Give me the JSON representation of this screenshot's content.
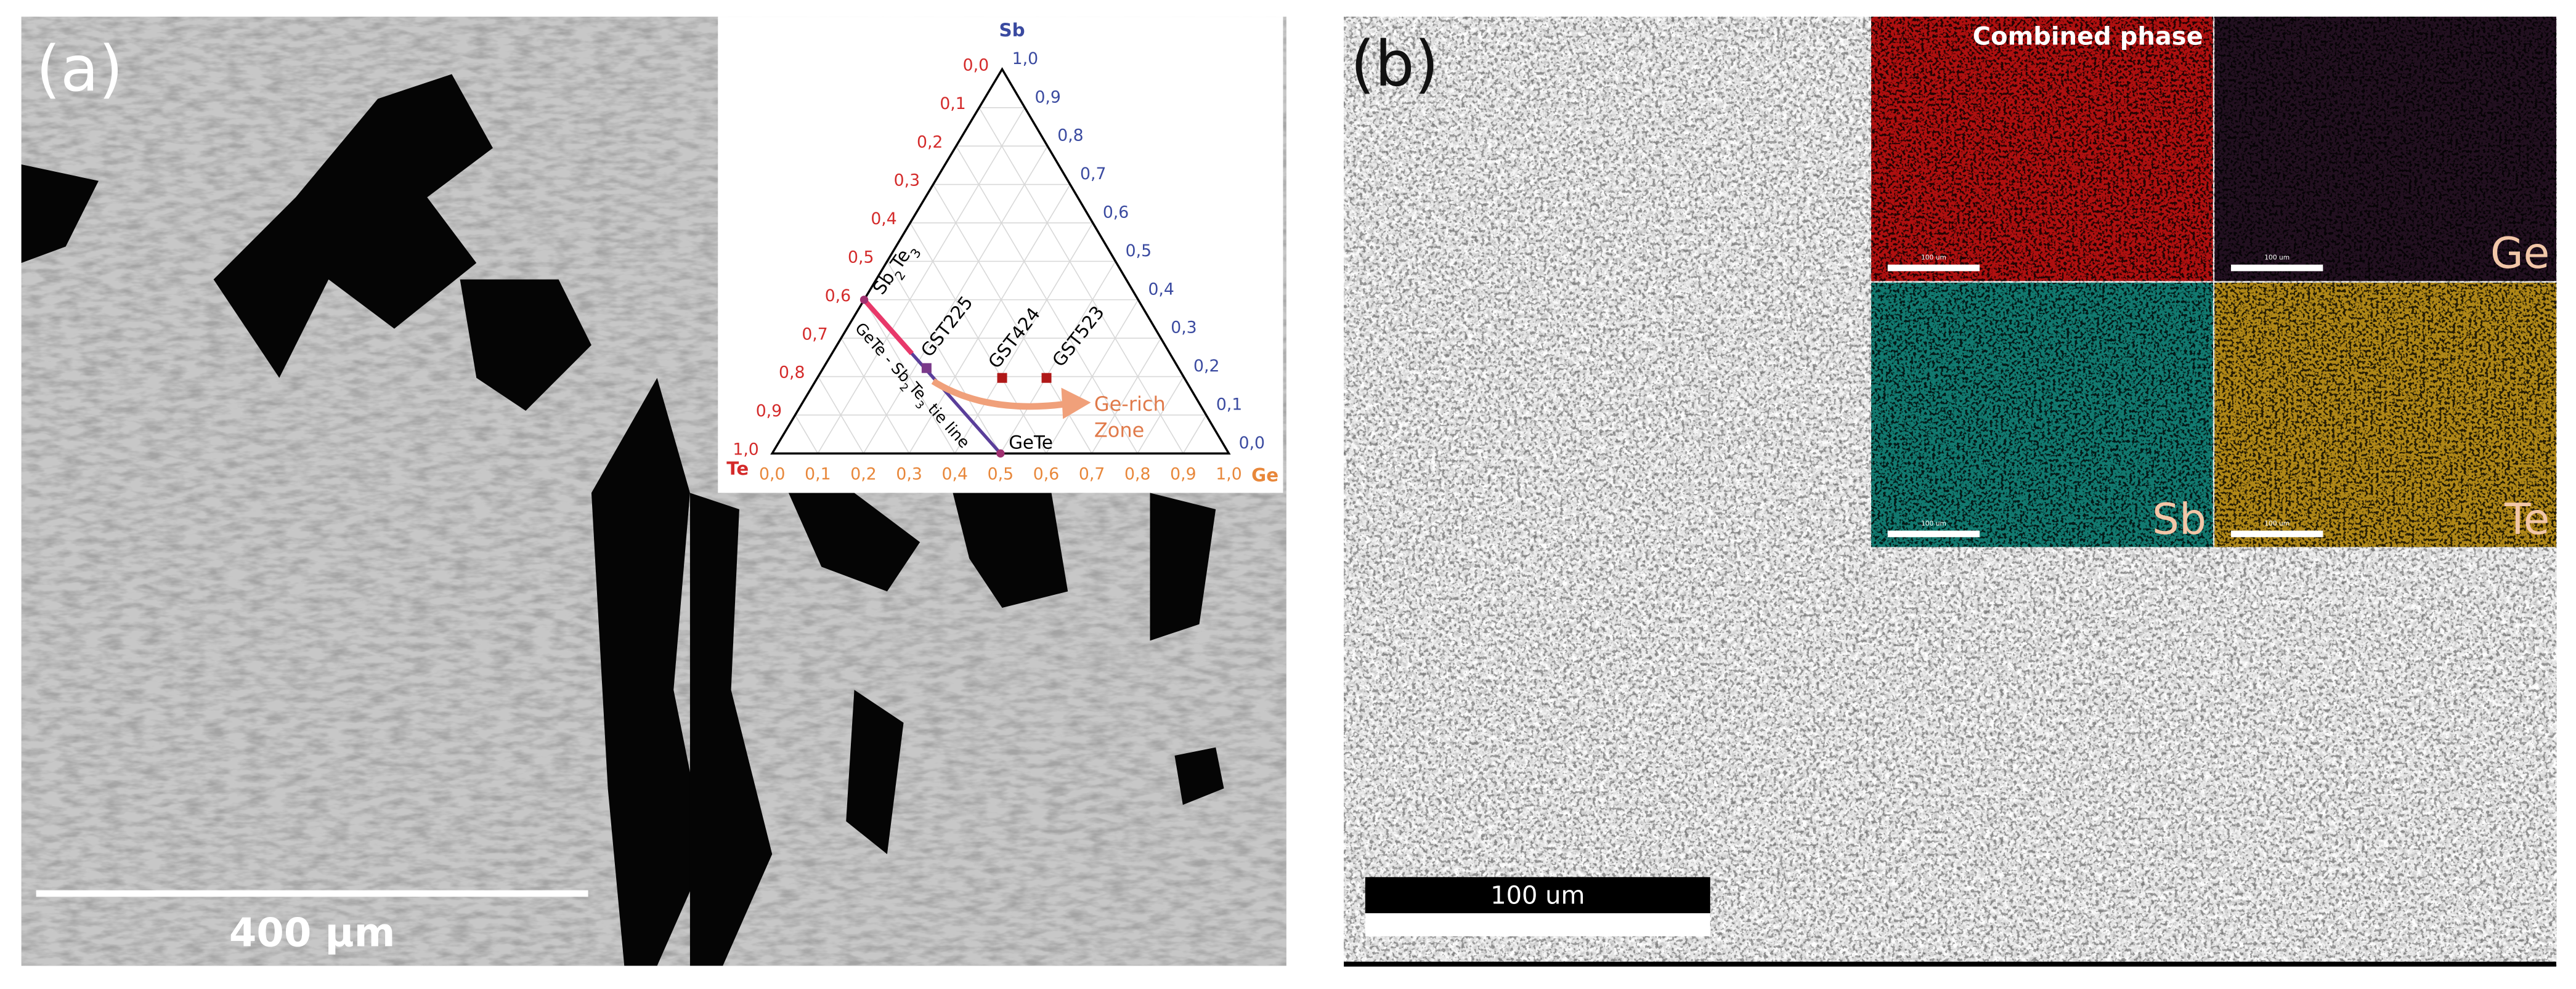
{
  "panel_a": {
    "label": "(a)",
    "scale_bar": "400 μm",
    "ternary": {
      "top": "Sb",
      "left": "Te",
      "right": "Ge",
      "te_ticks": [
        "0,0",
        "0,1",
        "0,2",
        "0,3",
        "0,4",
        "0,5",
        "0,6",
        "0,7",
        "0,8",
        "0,9",
        "1,0"
      ],
      "sb_ticks": [
        "1,0",
        "0,9",
        "0,8",
        "0,7",
        "0,6",
        "0,5",
        "0,4",
        "0,3",
        "0,2",
        "0,1",
        "0,0"
      ],
      "ge_ticks": [
        "0,0",
        "0,1",
        "0,2",
        "0,3",
        "0,4",
        "0,5",
        "0,6",
        "0,7",
        "0,8",
        "0,9",
        "1,0"
      ],
      "sb2te3": [
        "Sb",
        "2",
        "Te",
        "3"
      ],
      "tie_line": [
        "GeTe - Sb",
        "2",
        "Te",
        "3",
        " tie line"
      ],
      "points": [
        "GST225",
        "GST424",
        "GST523",
        "GeTe"
      ],
      "zone": [
        "Ge-rich",
        "Zone"
      ]
    }
  },
  "panel_b": {
    "label": "(b)",
    "scale_bar": "100 um",
    "maps": [
      {
        "title": "Combined phase",
        "scale": "100 um"
      },
      {
        "title": "Ge",
        "scale": "100 um"
      },
      {
        "title": "Sb",
        "scale": "100 um"
      },
      {
        "title": "Te",
        "scale": "100 um"
      }
    ]
  }
}
